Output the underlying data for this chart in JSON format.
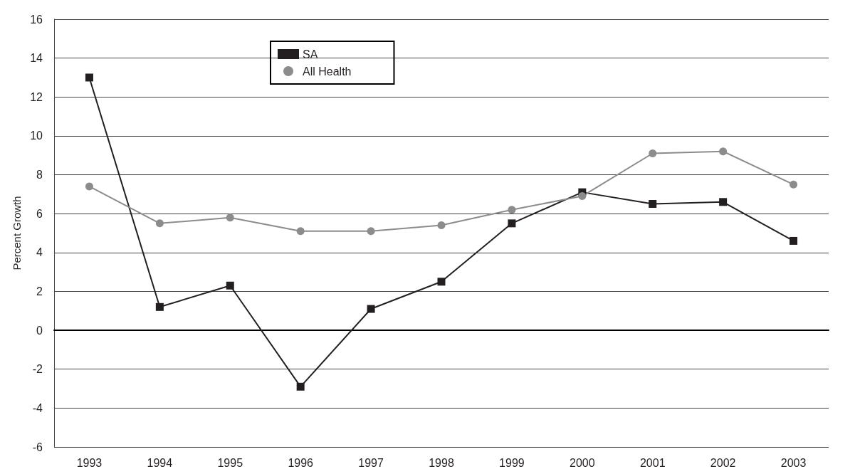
{
  "chart_data": {
    "type": "line",
    "ylabel": "Percent Growth",
    "categories": [
      "1993",
      "1994",
      "1995",
      "1996",
      "1997",
      "1998",
      "1999",
      "2000",
      "2001",
      "2002",
      "2003"
    ],
    "series": [
      {
        "name": "SA",
        "color": "#231f20",
        "marker": "square",
        "values": [
          13.0,
          1.2,
          2.3,
          -2.9,
          1.1,
          2.5,
          5.5,
          7.1,
          6.5,
          6.6,
          4.6
        ]
      },
      {
        "name": "All Health",
        "color": "#8c8c8c",
        "marker": "circle",
        "values": [
          7.4,
          5.5,
          5.8,
          5.1,
          5.1,
          5.4,
          6.2,
          6.9,
          9.1,
          9.2,
          7.5
        ]
      }
    ],
    "ylim": [
      -6,
      16
    ],
    "yticks": [
      -6,
      -4,
      -2,
      0,
      2,
      4,
      6,
      8,
      10,
      12,
      14,
      16
    ],
    "grid": "y",
    "legend": "top left",
    "line_style": "solid"
  }
}
